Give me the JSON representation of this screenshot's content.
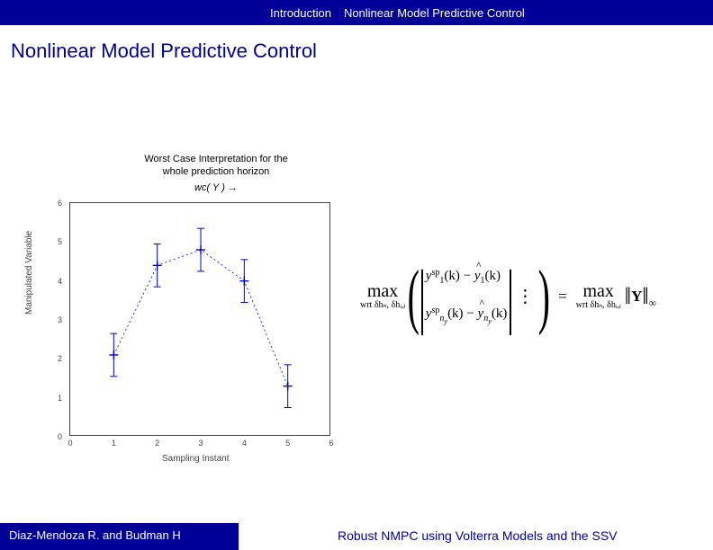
{
  "header": {
    "tab1": "Introduction",
    "tab2": "Nonlinear Model Predictive Control"
  },
  "slide_title": "Nonlinear Model Predictive Control",
  "footer": {
    "authors": "Diaz-Mendoza R. and Budman H",
    "paper_title": "Robust NMPC using Volterra Models and the SSV"
  },
  "chart": {
    "type": "error-bar-line",
    "title_line1": "Worst Case Interpretation for the",
    "title_line2": "whole prediction horizon",
    "wc_label": "wc( Y ) →",
    "ylabel": "Manipulated Variable",
    "xlabel": "Sampling Instant",
    "xlim": [
      0,
      6
    ],
    "ylim": [
      0,
      6
    ],
    "xtick_step": 1,
    "ytick_step": 1,
    "xticks": [
      0,
      1,
      2,
      3,
      4,
      5,
      6
    ],
    "yticks": [
      0,
      1,
      2,
      3,
      4,
      5,
      6
    ],
    "x": [
      1,
      2,
      3,
      4,
      5
    ],
    "y": [
      2.1,
      4.4,
      4.8,
      4.0,
      1.3
    ],
    "err": [
      0.55,
      0.55,
      0.55,
      0.55,
      0.55
    ],
    "series_color": "#0000cc",
    "marker": "+",
    "line_color": "#0000cc",
    "border_color": "#444444",
    "background_color": "#ffffff",
    "title_fontsize": 11,
    "label_fontsize": 10,
    "tick_fontsize": 9
  },
  "equation": {
    "lhs_op": "max",
    "lhs_wrt": "wrt δhₙ, δhᵢ,ⱼ",
    "row1_y_sp": "y",
    "row1_sp": "sp",
    "row1_sub1": "1",
    "row1_k": "(k)",
    "row1_minus": "−",
    "row1_yhat": "y",
    "row1_sub1b": "1",
    "row2_y_sp": "y",
    "row2_sp": "sp",
    "row2_sub_ny": "n_y",
    "row2_k": "(k)",
    "row2_minus": "−",
    "row2_yhat": "y",
    "row2_sub_nyb": "n_y",
    "vdots": "⋮",
    "eq": "=",
    "rhs_op": "max",
    "rhs_wrt": "wrt δhₙ, δhᵢ,ⱼ",
    "norm_barL": "‖",
    "norm_Y": "Y",
    "norm_barR": "‖",
    "norm_inf": "∞"
  }
}
